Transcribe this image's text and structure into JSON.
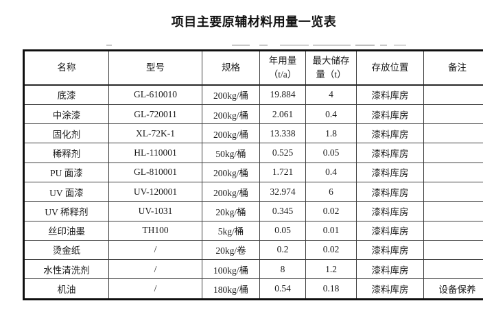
{
  "title": "项目主要原辅材料用量一览表",
  "table": {
    "columns": [
      {
        "id": "name",
        "lines": [
          "名称"
        ]
      },
      {
        "id": "model",
        "lines": [
          "型号"
        ]
      },
      {
        "id": "spec",
        "lines": [
          "规格"
        ]
      },
      {
        "id": "annual",
        "lines": [
          "年用量",
          "（t/a）"
        ]
      },
      {
        "id": "max-storage",
        "lines": [
          "最大储存",
          "量（t）"
        ]
      },
      {
        "id": "location",
        "lines": [
          "存放位置"
        ]
      },
      {
        "id": "remarks",
        "lines": [
          "备注"
        ]
      }
    ],
    "rows": [
      [
        "底漆",
        "GL-610010",
        "200kg/桶",
        "19.884",
        "4",
        "漆料库房",
        ""
      ],
      [
        "中涂漆",
        "GL-720011",
        "200kg/桶",
        "2.061",
        "0.4",
        "漆料库房",
        ""
      ],
      [
        "固化剂",
        "XL-72K-1",
        "200kg/桶",
        "13.338",
        "1.8",
        "漆料库房",
        ""
      ],
      [
        "稀释剂",
        "HL-110001",
        "50kg/桶",
        "0.525",
        "0.05",
        "漆料库房",
        ""
      ],
      [
        "PU 面漆",
        "GL-810001",
        "200kg/桶",
        "1.721",
        "0.4",
        "漆料库房",
        ""
      ],
      [
        "UV 面漆",
        "UV-120001",
        "200kg/桶",
        "32.974",
        "6",
        "漆料库房",
        ""
      ],
      [
        "UV 稀释剂",
        "UV-1031",
        "20kg/桶",
        "0.345",
        "0.02",
        "漆料库房",
        ""
      ],
      [
        "丝印油墨",
        "TH100",
        "5kg/桶",
        "0.05",
        "0.01",
        "漆料库房",
        ""
      ],
      [
        "烫金纸",
        "/",
        "20kg/卷",
        "0.2",
        "0.02",
        "漆料库房",
        ""
      ],
      [
        "水性清洗剂",
        "/",
        "100kg/桶",
        "8",
        "1.2",
        "漆料库房",
        ""
      ],
      [
        "机油",
        "/",
        "180kg/桶",
        "0.54",
        "0.18",
        "漆料库房",
        "设备保养"
      ]
    ]
  },
  "colors": {
    "background": "#ffffff",
    "text": "#1a1a1a",
    "border_outer": "#0f0f0f",
    "border_inner": "#3d3d3d"
  }
}
